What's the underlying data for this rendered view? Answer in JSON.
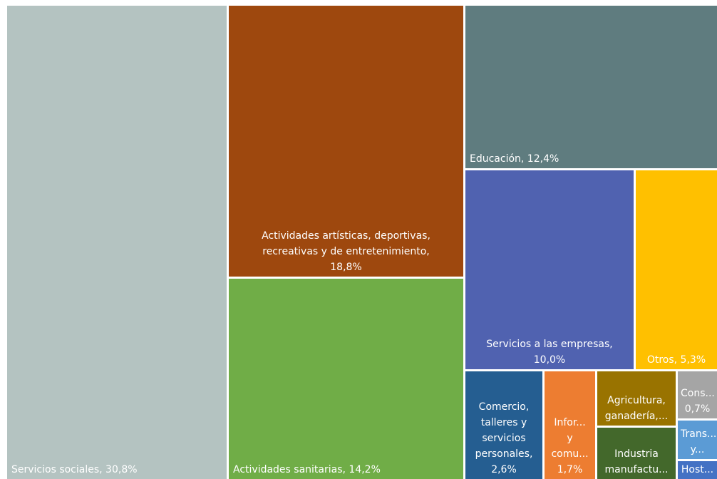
{
  "chart_data": {
    "type": "treemap",
    "label_color": "#ffffff",
    "items": [
      {
        "name": "Servicios sociales",
        "value": 30.8,
        "display": "Servicios sociales, 30,8%",
        "color": "#b4c3c1"
      },
      {
        "name": "Actividades artísticas, deportivas, recreativas y de entretenimiento",
        "value": 18.8,
        "display": "Actividades artísticas, deportivas,\nrecreativas y de entretenimiento,\n18,8%",
        "color": "#9e480e"
      },
      {
        "name": "Actividades sanitarias",
        "value": 14.2,
        "display": "Actividades sanitarias, 14,2%",
        "color": "#70ad47"
      },
      {
        "name": "Educación",
        "value": 12.4,
        "display": "Educación, 12,4%",
        "color": "#5f7c7f"
      },
      {
        "name": "Servicios a las empresas",
        "value": 10.0,
        "display": "Servicios a las empresas,\n10,0%",
        "color": "#5062b0"
      },
      {
        "name": "Otros",
        "value": 5.3,
        "display": "Otros, 5,3%",
        "color": "#ffc000"
      },
      {
        "name": "Comercio, talleres y servicios personales",
        "value": 2.6,
        "display": "Comercio,\ntalleres y\nservicios\npersonales,\n2,6%",
        "color": "#255e91"
      },
      {
        "name": "Información y comunicaciones",
        "value": 1.7,
        "display": "Infor...\ny\ncomu...\n1,7%",
        "color": "#ed7d31"
      },
      {
        "name": "Agricultura, ganadería",
        "value": null,
        "display": "Agricultura,\nganadería,...",
        "color": "#997300"
      },
      {
        "name": "Industria manufacturera",
        "value": null,
        "display": "Industria\nmanufactu...",
        "color": "#43682b"
      },
      {
        "name": "Construcción",
        "value": 0.7,
        "display": "Cons...\n0,7%",
        "color": "#a5a5a5"
      },
      {
        "name": "Transporte",
        "value": null,
        "display": "Trans...\ny...",
        "color": "#5b9bd5"
      },
      {
        "name": "Hostelería",
        "value": null,
        "display": "Host...",
        "color": "#4472c4"
      }
    ]
  }
}
